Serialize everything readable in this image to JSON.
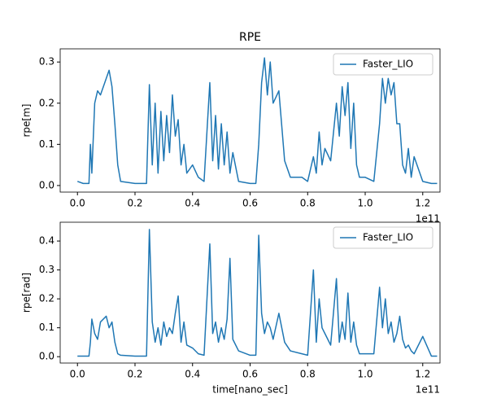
{
  "chart_data": [
    {
      "type": "line",
      "title": "RPE",
      "y_label": "rpe[m]",
      "x_offset_label": "1e11",
      "x": [
        0,
        0.02,
        0.04,
        0.045,
        0.05,
        0.06,
        0.07,
        0.08,
        0.1,
        0.11,
        0.12,
        0.13,
        0.14,
        0.15,
        0.2,
        0.24,
        0.25,
        0.26,
        0.27,
        0.28,
        0.29,
        0.3,
        0.31,
        0.32,
        0.33,
        0.34,
        0.35,
        0.36,
        0.37,
        0.38,
        0.4,
        0.42,
        0.44,
        0.46,
        0.47,
        0.48,
        0.49,
        0.5,
        0.51,
        0.52,
        0.53,
        0.54,
        0.56,
        0.6,
        0.62,
        0.63,
        0.64,
        0.65,
        0.66,
        0.67,
        0.68,
        0.7,
        0.72,
        0.74,
        0.78,
        0.8,
        0.82,
        0.83,
        0.84,
        0.85,
        0.86,
        0.88,
        0.9,
        0.91,
        0.92,
        0.93,
        0.94,
        0.95,
        0.96,
        0.97,
        0.98,
        1.0,
        1.03,
        1.05,
        1.06,
        1.07,
        1.08,
        1.09,
        1.1,
        1.11,
        1.12,
        1.13,
        1.14,
        1.15,
        1.16,
        1.17,
        1.2,
        1.23,
        1.25
      ],
      "series": [
        {
          "name": "Faster_LIO",
          "color": "#1f77b4",
          "values": [
            0.01,
            0.005,
            0.005,
            0.1,
            0.03,
            0.2,
            0.23,
            0.22,
            0.26,
            0.28,
            0.24,
            0.15,
            0.05,
            0.01,
            0.005,
            0.005,
            0.245,
            0.05,
            0.2,
            0.03,
            0.18,
            0.06,
            0.17,
            0.08,
            0.22,
            0.12,
            0.16,
            0.05,
            0.1,
            0.03,
            0.05,
            0.02,
            0.01,
            0.25,
            0.06,
            0.17,
            0.04,
            0.15,
            0.05,
            0.13,
            0.03,
            0.08,
            0.01,
            0.005,
            0.005,
            0.1,
            0.25,
            0.31,
            0.22,
            0.3,
            0.2,
            0.23,
            0.06,
            0.02,
            0.02,
            0.01,
            0.07,
            0.03,
            0.13,
            0.05,
            0.09,
            0.06,
            0.2,
            0.12,
            0.24,
            0.17,
            0.25,
            0.09,
            0.2,
            0.05,
            0.02,
            0.02,
            0.01,
            0.15,
            0.26,
            0.2,
            0.26,
            0.22,
            0.25,
            0.15,
            0.15,
            0.05,
            0.03,
            0.09,
            0.02,
            0.07,
            0.01,
            0.005,
            0.005
          ]
        }
      ],
      "xlim": [
        -0.06,
        1.26
      ],
      "xticks": [
        {
          "value": 0,
          "label": "0.0"
        },
        0.2,
        0.4,
        0.6,
        0.8,
        {
          "value": 1,
          "label": "1.0"
        },
        1.2
      ],
      "ylim": [
        -0.016,
        0.332
      ],
      "yticks": [
        {
          "value": 0,
          "label": "0.0"
        },
        0.1,
        0.2,
        0.3
      ],
      "legend": "upper right"
    },
    {
      "type": "line",
      "y_label": "rpe[rad]",
      "x_label": "time[nano_sec]",
      "x_offset_label": "1e11",
      "x": [
        0,
        0.02,
        0.04,
        0.045,
        0.05,
        0.06,
        0.07,
        0.08,
        0.1,
        0.11,
        0.12,
        0.13,
        0.14,
        0.15,
        0.2,
        0.24,
        0.25,
        0.26,
        0.27,
        0.28,
        0.29,
        0.3,
        0.31,
        0.32,
        0.33,
        0.34,
        0.35,
        0.36,
        0.37,
        0.38,
        0.4,
        0.42,
        0.44,
        0.46,
        0.47,
        0.48,
        0.49,
        0.5,
        0.51,
        0.52,
        0.53,
        0.54,
        0.56,
        0.6,
        0.62,
        0.63,
        0.64,
        0.65,
        0.66,
        0.67,
        0.68,
        0.7,
        0.72,
        0.74,
        0.78,
        0.8,
        0.82,
        0.83,
        0.84,
        0.85,
        0.86,
        0.88,
        0.9,
        0.91,
        0.92,
        0.93,
        0.94,
        0.95,
        0.96,
        0.97,
        0.98,
        1.0,
        1.03,
        1.05,
        1.06,
        1.07,
        1.08,
        1.09,
        1.1,
        1.11,
        1.12,
        1.13,
        1.14,
        1.15,
        1.16,
        1.17,
        1.2,
        1.23,
        1.25
      ],
      "series": [
        {
          "name": "Faster_LIO",
          "color": "#1f77b4",
          "values": [
            0.002,
            0.002,
            0.002,
            0.05,
            0.13,
            0.08,
            0.06,
            0.12,
            0.14,
            0.1,
            0.12,
            0.05,
            0.01,
            0.005,
            0.002,
            0.002,
            0.44,
            0.12,
            0.05,
            0.1,
            0.04,
            0.12,
            0.07,
            0.1,
            0.08,
            0.15,
            0.21,
            0.05,
            0.12,
            0.04,
            0.03,
            0.01,
            0.005,
            0.39,
            0.08,
            0.12,
            0.05,
            0.1,
            0.06,
            0.13,
            0.34,
            0.06,
            0.02,
            0.005,
            0.005,
            0.42,
            0.15,
            0.08,
            0.12,
            0.1,
            0.06,
            0.15,
            0.05,
            0.02,
            0.01,
            0.005,
            0.3,
            0.05,
            0.2,
            0.1,
            0.08,
            0.04,
            0.27,
            0.05,
            0.12,
            0.06,
            0.22,
            0.05,
            0.12,
            0.04,
            0.01,
            0.01,
            0.01,
            0.24,
            0.1,
            0.2,
            0.08,
            0.12,
            0.05,
            0.08,
            0.14,
            0.06,
            0.03,
            0.04,
            0.02,
            0.01,
            0.07,
            0.002,
            0.002
          ]
        }
      ],
      "xlim": [
        -0.06,
        1.26
      ],
      "xticks": [
        {
          "value": 0,
          "label": "0.0"
        },
        0.2,
        0.4,
        0.6,
        0.8,
        {
          "value": 1,
          "label": "1.0"
        },
        1.2
      ],
      "ylim": [
        -0.022,
        0.465
      ],
      "yticks": [
        {
          "value": 0,
          "label": "0.0"
        },
        0.1,
        0.2,
        0.3,
        0.4
      ],
      "legend": "upper right"
    }
  ]
}
